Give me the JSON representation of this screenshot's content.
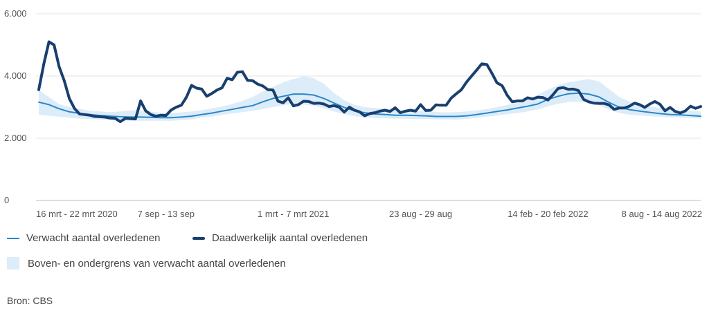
{
  "chart_data": {
    "type": "line",
    "title": "",
    "xlabel": "",
    "ylabel": "",
    "ylim": [
      0,
      6000
    ],
    "yticks": [
      0,
      2000,
      4000,
      6000
    ],
    "ytick_labels": [
      "0",
      "2.000",
      "4.000",
      "6.000"
    ],
    "grid": true,
    "x_tick_labels": [
      {
        "week": 0,
        "label": "16 mrt - 22 mrt 2020"
      },
      {
        "week": 25,
        "label": "7 sep - 13 sep"
      },
      {
        "week": 50,
        "label": "1 mrt - 7 mrt 2021"
      },
      {
        "week": 75,
        "label": "23 aug - 29 aug"
      },
      {
        "week": 100,
        "label": "14 feb - 20 feb 2022"
      },
      {
        "week": 125,
        "label": "8 aug - 14 aug 2022"
      }
    ],
    "series": [
      {
        "name": "Verwacht aantal overledenen",
        "color": "#2a86c9",
        "x": [
          0,
          2,
          4,
          6,
          8,
          10,
          12,
          14,
          16,
          18,
          20,
          22,
          24,
          26,
          28,
          30,
          32,
          34,
          36,
          38,
          40,
          42,
          44,
          46,
          48,
          50,
          52,
          54,
          56,
          58,
          60,
          62,
          64,
          66,
          68,
          70,
          72,
          74,
          76,
          78,
          80,
          82,
          84,
          86,
          88,
          90,
          92,
          94,
          96,
          98,
          100,
          102,
          104,
          106,
          108,
          110,
          112,
          114,
          116,
          118,
          120,
          122,
          124,
          126,
          128,
          130
        ],
        "values": [
          3160,
          3080,
          2950,
          2850,
          2800,
          2760,
          2730,
          2710,
          2690,
          2680,
          2680,
          2670,
          2660,
          2660,
          2680,
          2710,
          2760,
          2810,
          2870,
          2930,
          2990,
          3050,
          3170,
          3280,
          3350,
          3420,
          3420,
          3390,
          3280,
          3130,
          2990,
          2880,
          2820,
          2780,
          2760,
          2740,
          2740,
          2730,
          2720,
          2700,
          2700,
          2700,
          2720,
          2760,
          2810,
          2860,
          2910,
          2970,
          3030,
          3100,
          3250,
          3350,
          3430,
          3450,
          3420,
          3330,
          3150,
          3000,
          2920,
          2870,
          2830,
          2790,
          2760,
          2750,
          2730,
          2710
        ]
      },
      {
        "name": "Daadwerkelijk aantal overledenen",
        "color": "#183f6e",
        "x": [
          0,
          1,
          2,
          3,
          4,
          5,
          6,
          7,
          8,
          9,
          10,
          11,
          12,
          13,
          14,
          15,
          16,
          17,
          18,
          19,
          20,
          21,
          22,
          23,
          24,
          25,
          26,
          27,
          28,
          29,
          30,
          31,
          32,
          33,
          34,
          35,
          36,
          37,
          38,
          39,
          40,
          41,
          42,
          43,
          44,
          45,
          46,
          47,
          48,
          49,
          50,
          51,
          52,
          53,
          54,
          55,
          56,
          57,
          58,
          59,
          60,
          61,
          62,
          63,
          64,
          65,
          66,
          67,
          68,
          69,
          70,
          71,
          72,
          73,
          74,
          75,
          76,
          77,
          78,
          79,
          80,
          81,
          82,
          83,
          84,
          85,
          86,
          87,
          88,
          89,
          90,
          91,
          92,
          93,
          94,
          95,
          96,
          97,
          98,
          99,
          100,
          101,
          102,
          103,
          104,
          105,
          106,
          107,
          108,
          109,
          110,
          111,
          112,
          113,
          114,
          115,
          116,
          117,
          118,
          119,
          120,
          121,
          122,
          123,
          124,
          125,
          126,
          127,
          128,
          129,
          130
        ],
        "values": [
          3560,
          4400,
          5100,
          5000,
          4300,
          3850,
          3280,
          2960,
          2780,
          2760,
          2740,
          2700,
          2690,
          2680,
          2650,
          2640,
          2530,
          2640,
          2630,
          2620,
          3200,
          2880,
          2760,
          2710,
          2740,
          2730,
          2910,
          3000,
          3060,
          3320,
          3700,
          3610,
          3580,
          3350,
          3440,
          3550,
          3620,
          3930,
          3880,
          4120,
          4140,
          3860,
          3850,
          3740,
          3680,
          3560,
          3550,
          3190,
          3140,
          3300,
          3040,
          3080,
          3190,
          3180,
          3120,
          3130,
          3100,
          3020,
          3050,
          3000,
          2840,
          3000,
          2900,
          2850,
          2720,
          2790,
          2820,
          2870,
          2900,
          2860,
          2980,
          2820,
          2870,
          2900,
          2870,
          3080,
          2890,
          2900,
          3070,
          3060,
          3060,
          3290,
          3430,
          3560,
          3800,
          4000,
          4190,
          4390,
          4370,
          4090,
          3780,
          3690,
          3380,
          3170,
          3200,
          3200,
          3300,
          3260,
          3320,
          3310,
          3230,
          3400,
          3600,
          3630,
          3570,
          3580,
          3530,
          3250,
          3170,
          3130,
          3120,
          3120,
          3070,
          2930,
          2970,
          2970,
          3030,
          3130,
          3080,
          2990,
          3100,
          3180,
          3090,
          2880,
          2990,
          2860,
          2810,
          2880,
          3030,
          2960,
          3020
        ]
      }
    ],
    "band": {
      "name": "Boven- en ondergrens van verwacht aantal overledenen",
      "color": "#dcecf9",
      "x": [
        0,
        2,
        4,
        6,
        8,
        10,
        12,
        14,
        16,
        18,
        20,
        22,
        24,
        26,
        28,
        30,
        32,
        34,
        36,
        38,
        40,
        42,
        44,
        46,
        48,
        50,
        52,
        54,
        56,
        58,
        60,
        62,
        64,
        66,
        68,
        70,
        72,
        74,
        76,
        78,
        80,
        82,
        84,
        86,
        88,
        90,
        92,
        94,
        96,
        98,
        100,
        102,
        104,
        106,
        108,
        110,
        112,
        114,
        116,
        118,
        120,
        122,
        124,
        126,
        128,
        130
      ],
      "upper": [
        3560,
        3320,
        3100,
        3000,
        2950,
        2880,
        2860,
        2840,
        2860,
        2890,
        2890,
        2860,
        2820,
        2810,
        2830,
        2860,
        2900,
        2960,
        3020,
        3100,
        3200,
        3330,
        3500,
        3650,
        3800,
        3900,
        3990,
        3930,
        3750,
        3450,
        3220,
        3070,
        3000,
        2970,
        2950,
        2920,
        2890,
        2870,
        2860,
        2840,
        2830,
        2840,
        2860,
        2890,
        2940,
        3000,
        3070,
        3140,
        3250,
        3400,
        3560,
        3700,
        3800,
        3850,
        3900,
        3830,
        3580,
        3330,
        3170,
        3080,
        3020,
        2970,
        2930,
        2900,
        2880,
        2860
      ],
      "lower": [
        2750,
        2720,
        2690,
        2660,
        2630,
        2620,
        2600,
        2580,
        2570,
        2560,
        2560,
        2560,
        2560,
        2560,
        2580,
        2610,
        2660,
        2700,
        2750,
        2800,
        2840,
        2880,
        2940,
        3000,
        3060,
        3100,
        3080,
        3050,
        2960,
        2860,
        2770,
        2710,
        2670,
        2650,
        2640,
        2630,
        2630,
        2620,
        2620,
        2610,
        2610,
        2600,
        2620,
        2650,
        2690,
        2730,
        2770,
        2810,
        2860,
        2930,
        3030,
        3110,
        3160,
        3180,
        3150,
        3060,
        2920,
        2810,
        2760,
        2730,
        2710,
        2690,
        2670,
        2660,
        2650,
        2640
      ]
    }
  },
  "legend": {
    "expected_label": "Verwacht aantal overledenen",
    "actual_label": "Daadwerkelijk aantal overledenen",
    "band_label": "Boven- en ondergrens van verwacht aantal overledenen"
  },
  "source": "Bron: CBS"
}
